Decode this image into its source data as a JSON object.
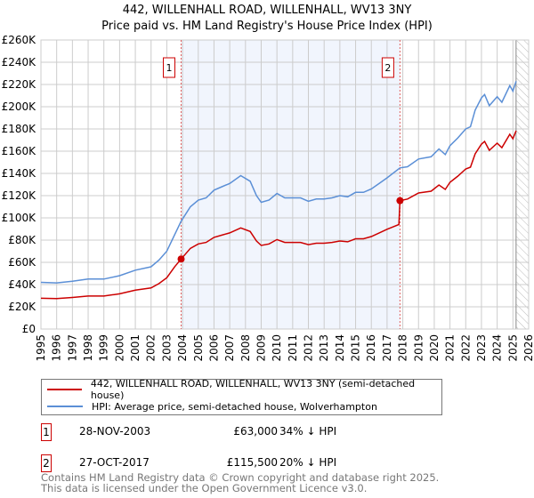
{
  "title": "442, WILLENHALL ROAD, WILLENHALL, WV13 3NY",
  "subtitle": "Price paid vs. HM Land Registry's House Price Index (HPI)",
  "chart_data": {
    "type": "line",
    "ylim": [
      0,
      260000
    ],
    "xlim": [
      1995,
      2026
    ],
    "yticks": [
      0,
      20000,
      40000,
      60000,
      80000,
      100000,
      120000,
      140000,
      160000,
      180000,
      200000,
      220000,
      240000,
      260000
    ],
    "ytick_labels": [
      "£0",
      "£20K",
      "£40K",
      "£60K",
      "£80K",
      "£100K",
      "£120K",
      "£140K",
      "£160K",
      "£180K",
      "£200K",
      "£220K",
      "£240K",
      "£260K"
    ],
    "xtick_labels": [
      "1995",
      "1996",
      "1997",
      "1998",
      "1999",
      "2000",
      "2001",
      "2002",
      "2003",
      "2004",
      "2005",
      "2006",
      "2007",
      "2008",
      "2009",
      "2010",
      "2011",
      "2012",
      "2013",
      "2014",
      "2015",
      "2016",
      "2017",
      "2018",
      "2019",
      "2020",
      "2021",
      "2022",
      "2023",
      "2024",
      "2025",
      "2026"
    ],
    "grid": true,
    "shaded_range": [
      2003.91,
      2017.82
    ],
    "hatched_from": 2025.2,
    "series": [
      {
        "name": "442, WILLENHALL ROAD, WILLENHALL, WV13 3NY (semi-detached house)",
        "color": "#cc0000",
        "x": [
          1995,
          1996,
          1997,
          1998,
          1999,
          2000,
          2001,
          2002,
          2002.5,
          2003,
          2003.5,
          2003.91,
          2004.5,
          2005,
          2005.5,
          2006,
          2006.5,
          2007,
          2007.7,
          2008.3,
          2008.7,
          2009,
          2009.5,
          2010,
          2010.5,
          2011,
          2011.5,
          2012,
          2012.5,
          2013,
          2013.5,
          2014,
          2014.5,
          2015,
          2015.5,
          2016,
          2016.5,
          2017,
          2017.75,
          2017.82,
          2018.3,
          2019,
          2019.8,
          2020.3,
          2020.7,
          2021,
          2021.5,
          2022,
          2022.3,
          2022.6,
          2023,
          2023.2,
          2023.5,
          2024,
          2024.3,
          2024.8,
          2025,
          2025.2
        ],
        "y": [
          27700,
          27400,
          28400,
          29700,
          29700,
          31700,
          35000,
          37000,
          40900,
          46200,
          56100,
          63000,
          72600,
          76600,
          77900,
          82500,
          84500,
          86500,
          91000,
          87800,
          79200,
          75200,
          76600,
          80500,
          77900,
          77900,
          77900,
          75900,
          77200,
          77200,
          77900,
          79200,
          78500,
          81200,
          81200,
          83200,
          86500,
          89800,
          94000,
          115500,
          117000,
          122400,
          124000,
          129600,
          125600,
          132000,
          137600,
          144000,
          145600,
          157600,
          166400,
          168800,
          160800,
          167200,
          163200,
          175200,
          171200,
          178400
        ]
      },
      {
        "name": "HPI: Average price, semi-detached house, Wolverhampton",
        "color": "#5b8fd6",
        "x": [
          1995,
          1996,
          1997,
          1998,
          1999,
          2000,
          2001,
          2002,
          2002.5,
          2003,
          2003.5,
          2003.91,
          2004.5,
          2005,
          2005.5,
          2006,
          2006.5,
          2007,
          2007.7,
          2008.3,
          2008.7,
          2009,
          2009.5,
          2010,
          2010.5,
          2011,
          2011.5,
          2012,
          2012.5,
          2013,
          2013.5,
          2014,
          2014.5,
          2015,
          2015.5,
          2016,
          2016.5,
          2017,
          2017.82,
          2018.3,
          2019,
          2019.8,
          2020.3,
          2020.7,
          2021,
          2021.5,
          2022,
          2022.3,
          2022.6,
          2023,
          2023.2,
          2023.5,
          2024,
          2024.3,
          2024.8,
          2025,
          2025.2
        ],
        "y": [
          42000,
          41500,
          43000,
          45000,
          45000,
          48000,
          53000,
          56000,
          62000,
          70000,
          85000,
          97000,
          110000,
          116000,
          118000,
          125000,
          128000,
          131000,
          138000,
          133000,
          120000,
          114000,
          116000,
          122000,
          118000,
          118000,
          118000,
          115000,
          117000,
          117000,
          118000,
          120000,
          119000,
          123000,
          123000,
          126000,
          131000,
          136000,
          145000,
          146000,
          153000,
          155000,
          162000,
          157000,
          165000,
          172000,
          180000,
          182000,
          197000,
          208000,
          211000,
          201000,
          209000,
          204000,
          219000,
          214000,
          223000
        ]
      }
    ],
    "sales": [
      {
        "label": "1",
        "x": 2003.91,
        "y": 63000
      },
      {
        "label": "2",
        "x": 2017.82,
        "y": 115500
      }
    ]
  },
  "legend": {
    "property": "442, WILLENHALL ROAD, WILLENHALL, WV13 3NY (semi-detached house)",
    "hpi": "HPI: Average price, semi-detached house, Wolverhampton"
  },
  "transactions": [
    {
      "num": "1",
      "date": "28-NOV-2003",
      "price": "£63,000",
      "hpi": "34% ↓ HPI"
    },
    {
      "num": "2",
      "date": "27-OCT-2017",
      "price": "£115,500",
      "hpi": "20% ↓ HPI"
    }
  ],
  "footer": {
    "line1": "Contains HM Land Registry data © Crown copyright and database right 2025.",
    "line2": "This data is licensed under the Open Government Licence v3.0."
  }
}
